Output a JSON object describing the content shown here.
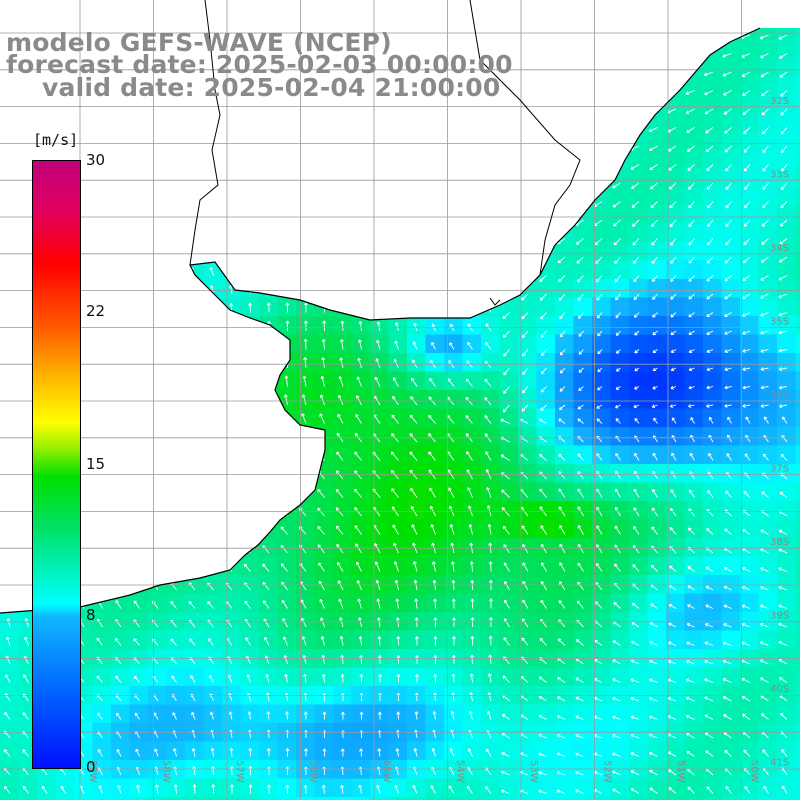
{
  "title": {
    "model": "modelo GEFS-WAVE (NCEP)",
    "forecast_date": "forecast date: 2025-02-03 00:00:00",
    "valid_date": "valid date: 2025-02-04 21:00:00"
  },
  "colorbar": {
    "unit": "[m/s]",
    "min": 0,
    "max": 30,
    "tick_labels": [
      "30",
      "22",
      "15",
      "8",
      "0"
    ],
    "tick_values": [
      30,
      22,
      15,
      8,
      0
    ]
  },
  "grid": {
    "lat_labels": [
      "32S",
      "33S",
      "34S",
      "35S",
      "36S",
      "37S",
      "38S",
      "39S",
      "40S",
      "41S"
    ],
    "lon_labels": [
      "59W",
      "58W",
      "57W",
      "56W",
      "55W",
      "54W",
      "53W",
      "52W",
      "51W",
      "50W"
    ]
  },
  "colors": {
    "land": "#ffffff",
    "gridline": "#9a9a9a",
    "arrow": "#ffffff",
    "coast": "#000000",
    "title_text": "#8a8a8a"
  }
}
